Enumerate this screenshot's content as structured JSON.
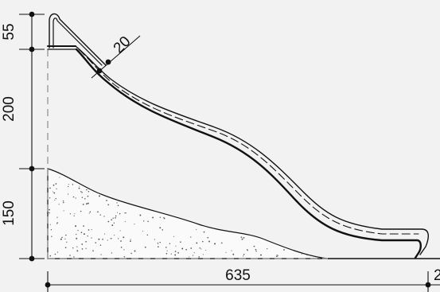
{
  "dimensions": {
    "step_height": "55",
    "slide_height": "200",
    "platform_height": "150",
    "horizontal_length": "635",
    "end_offset": "2",
    "thickness": "20"
  },
  "colors": {
    "background": "#f2f2f2",
    "line": "#111111",
    "dashed": "#9a9a9a",
    "ground_fill": "#fafafa"
  }
}
